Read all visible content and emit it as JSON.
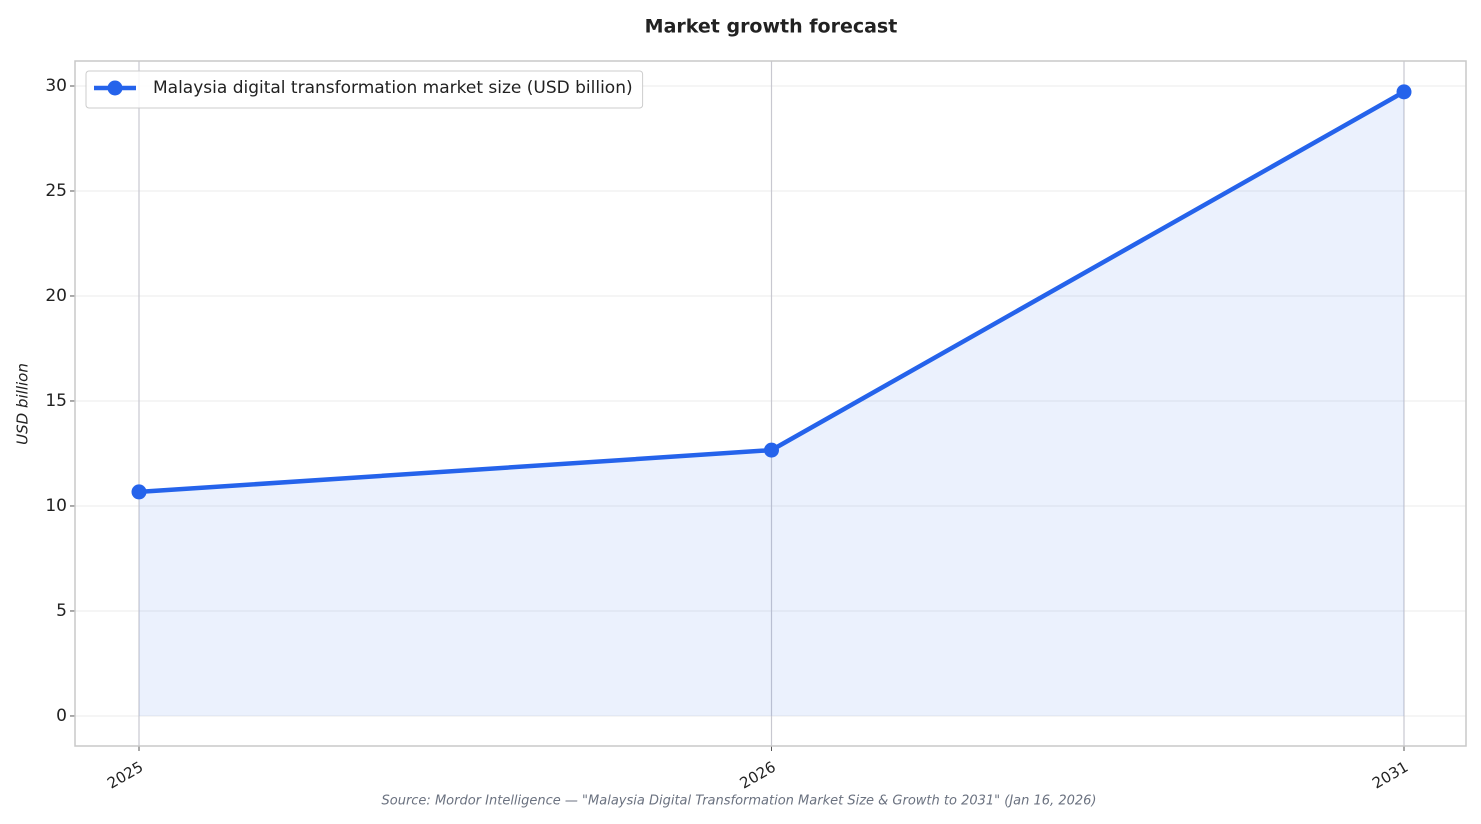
{
  "chart_data": {
    "type": "line",
    "title": "Market growth forecast",
    "y_label": "USD billion",
    "source": "Source: Mordor Intelligence — \"Malaysia Digital Transformation Market Size & Growth to 2031\" (Jan 16, 2026)",
    "categories": [
      "2025",
      "2026",
      "2031"
    ],
    "series": [
      {
        "name": "Malaysia digital transformation market size (USD billion)",
        "color": "#2563eb",
        "values": [
          10.67,
          12.66,
          29.72
        ]
      }
    ],
    "ylim": [
      -1.43,
      31.19
    ],
    "yticks": [
      0,
      5,
      10,
      15,
      20,
      25,
      30
    ],
    "grid": true,
    "legend": "upper left",
    "fill_area": true
  }
}
